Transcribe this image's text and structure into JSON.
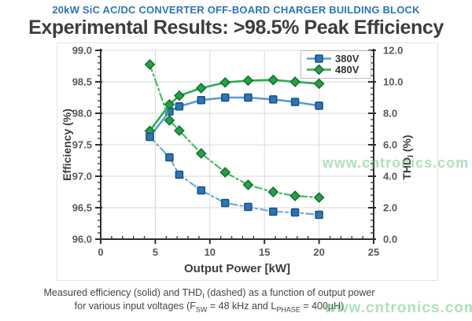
{
  "header": {
    "kicker": "20kW SiC AC/DC CONVERTER OFF-BOARD CHARGER BUILDING BLOCK",
    "title": "Experimental Results: >98.5% Peak Efficiency",
    "kicker_color": "#2e74b5",
    "title_color": "#3d3d3d"
  },
  "watermark": {
    "text": "www.cntronics.com",
    "color": "#6ec685"
  },
  "caption": {
    "l1a": "Measured efficiency (solid) and THD",
    "l1sub": "I",
    "l1b": " (dashed) as a function of output power",
    "l2a": "for various input voltages (F",
    "l2sub1": "SW",
    "l2b": " = 48 kHz and L",
    "l2sub2": "PHASE",
    "l2c": " = 400µH)"
  },
  "chart_data": {
    "type": "line",
    "title": "",
    "xlabel": "Output Power [kW]",
    "ylabel_left": "Efficiency (%)",
    "ylabel_right": {
      "pre": "THD",
      "sub": "I",
      "post": " (%)"
    },
    "x_range": [
      0,
      25
    ],
    "x_tick_step": 5,
    "x_minor_step": 1,
    "y_left_range": [
      96.0,
      99.0
    ],
    "y_left_tick_step": 0.5,
    "y_left_minor_step": 0.1,
    "y_right_range": [
      0.0,
      12.0
    ],
    "y_right_tick_step": 2.0,
    "y_right_minor_step": 0.4,
    "grid": true,
    "legend_position": "top-right",
    "legend": [
      "380V",
      "480V"
    ],
    "x": [
      4.5,
      6.3,
      7.2,
      9.2,
      11.4,
      13.5,
      15.8,
      17.8,
      20
    ],
    "series": [
      {
        "name": "380V",
        "measure": "efficiency",
        "axis": "left",
        "style": "solid",
        "marker": "square",
        "line_color": "#5b9bd5",
        "marker_fill": "#2e75b6",
        "marker_edge": "#1b4f82",
        "values": [
          97.63,
          98.03,
          98.11,
          98.21,
          98.25,
          98.25,
          98.22,
          98.18,
          98.12
        ]
      },
      {
        "name": "480V",
        "measure": "efficiency",
        "axis": "left",
        "style": "solid",
        "marker": "diamond",
        "line_color": "#2ead4b",
        "marker_fill": "#24a148",
        "marker_edge": "#156d2e",
        "values": [
          97.72,
          98.14,
          98.28,
          98.4,
          98.49,
          98.52,
          98.53,
          98.5,
          98.47
        ]
      },
      {
        "name": "380V THD",
        "measure": "thd",
        "axis": "right",
        "style": "dashdot",
        "marker": "square",
        "line_color": "#74a9dc",
        "marker_fill": "#2e75b6",
        "marker_edge": "#1b4f82",
        "values": [
          6.5,
          5.2,
          4.1,
          3.1,
          2.3,
          2.05,
          1.75,
          1.7,
          1.55
        ]
      },
      {
        "name": "480V THD",
        "measure": "thd",
        "axis": "right",
        "style": "dashdot",
        "marker": "diamond",
        "line_color": "#45bc63",
        "marker_fill": "#24a148",
        "marker_edge": "#156d2e",
        "values": [
          11.1,
          7.55,
          6.9,
          5.45,
          4.25,
          3.45,
          3.0,
          2.75,
          2.65
        ]
      }
    ]
  }
}
